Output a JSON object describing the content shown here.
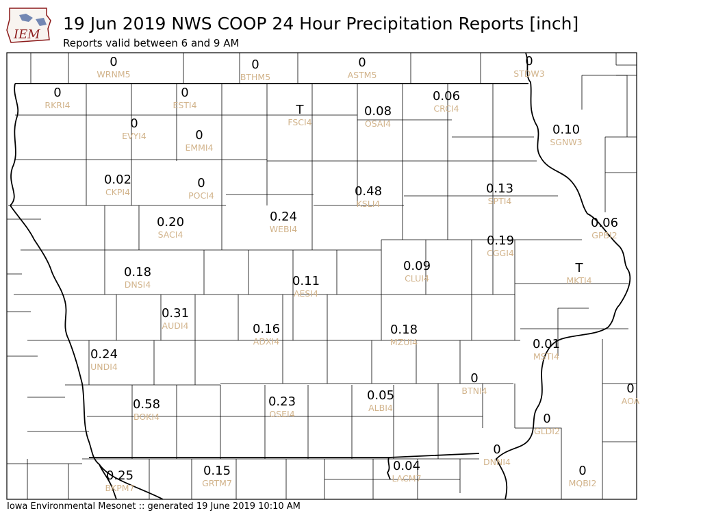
{
  "header": {
    "logo_text": "IEM",
    "title": "19 Jun 2019 NWS COOP 24 Hour Precipitation Reports [inch]",
    "subtitle": "Reports valid between 6 and 9 AM"
  },
  "footer": {
    "text": "Iowa Environmental Mesonet :: generated 19 June 2019 10:10 AM"
  },
  "colors": {
    "value_text": "#000000",
    "station_id_text": "#d2b48c",
    "logo_outline": "#8b1a1a",
    "logo_text": "#8b1a1a"
  },
  "stations": [
    {
      "id": "WRNM5",
      "value": "0"
    },
    {
      "id": "BTHM5",
      "value": "0"
    },
    {
      "id": "ASTM5",
      "value": "0"
    },
    {
      "id": "STDW3",
      "value": "0"
    },
    {
      "id": "RKRI4",
      "value": "0"
    },
    {
      "id": "ESTI4",
      "value": "0"
    },
    {
      "id": "FSCI4",
      "value": "T"
    },
    {
      "id": "OSAI4",
      "value": "0.08"
    },
    {
      "id": "CRCI4",
      "value": "0.06"
    },
    {
      "id": "EVYI4",
      "value": "0"
    },
    {
      "id": "EMMI4",
      "value": "0"
    },
    {
      "id": "SGNW3",
      "value": "0.10"
    },
    {
      "id": "CKPI4",
      "value": "0.02"
    },
    {
      "id": "POCI4",
      "value": "0"
    },
    {
      "id": "KSLI4",
      "value": "0.48"
    },
    {
      "id": "SPTI4",
      "value": "0.13"
    },
    {
      "id": "SACI4",
      "value": "0.20"
    },
    {
      "id": "WEBI4",
      "value": "0.24"
    },
    {
      "id": "GPBI2",
      "value": "0.06"
    },
    {
      "id": "CGGI4",
      "value": "0.19"
    },
    {
      "id": "DNSI4",
      "value": "0.18"
    },
    {
      "id": "CLUI4",
      "value": "0.09"
    },
    {
      "id": "MKTI4",
      "value": "T"
    },
    {
      "id": "AESI4",
      "value": "0.11"
    },
    {
      "id": "AUDI4",
      "value": "0.31"
    },
    {
      "id": "ADXI4",
      "value": "0.16"
    },
    {
      "id": "MZUI4",
      "value": "0.18"
    },
    {
      "id": "MSTI4",
      "value": "0.01"
    },
    {
      "id": "UNDI4",
      "value": "0.24"
    },
    {
      "id": "BTNI4",
      "value": "0"
    },
    {
      "id": "AOA",
      "value": "0"
    },
    {
      "id": "ALBI4",
      "value": "0.05"
    },
    {
      "id": "BOKI4",
      "value": "0.58"
    },
    {
      "id": "OSEI4",
      "value": "0.23"
    },
    {
      "id": "GLDI2",
      "value": "0"
    },
    {
      "id": "DNNI4",
      "value": "0"
    },
    {
      "id": "LACM7",
      "value": "0.04"
    },
    {
      "id": "MQBI2",
      "value": "0"
    },
    {
      "id": "BKPM7",
      "value": "0.25"
    },
    {
      "id": "GRTM7",
      "value": "0.15"
    }
  ]
}
